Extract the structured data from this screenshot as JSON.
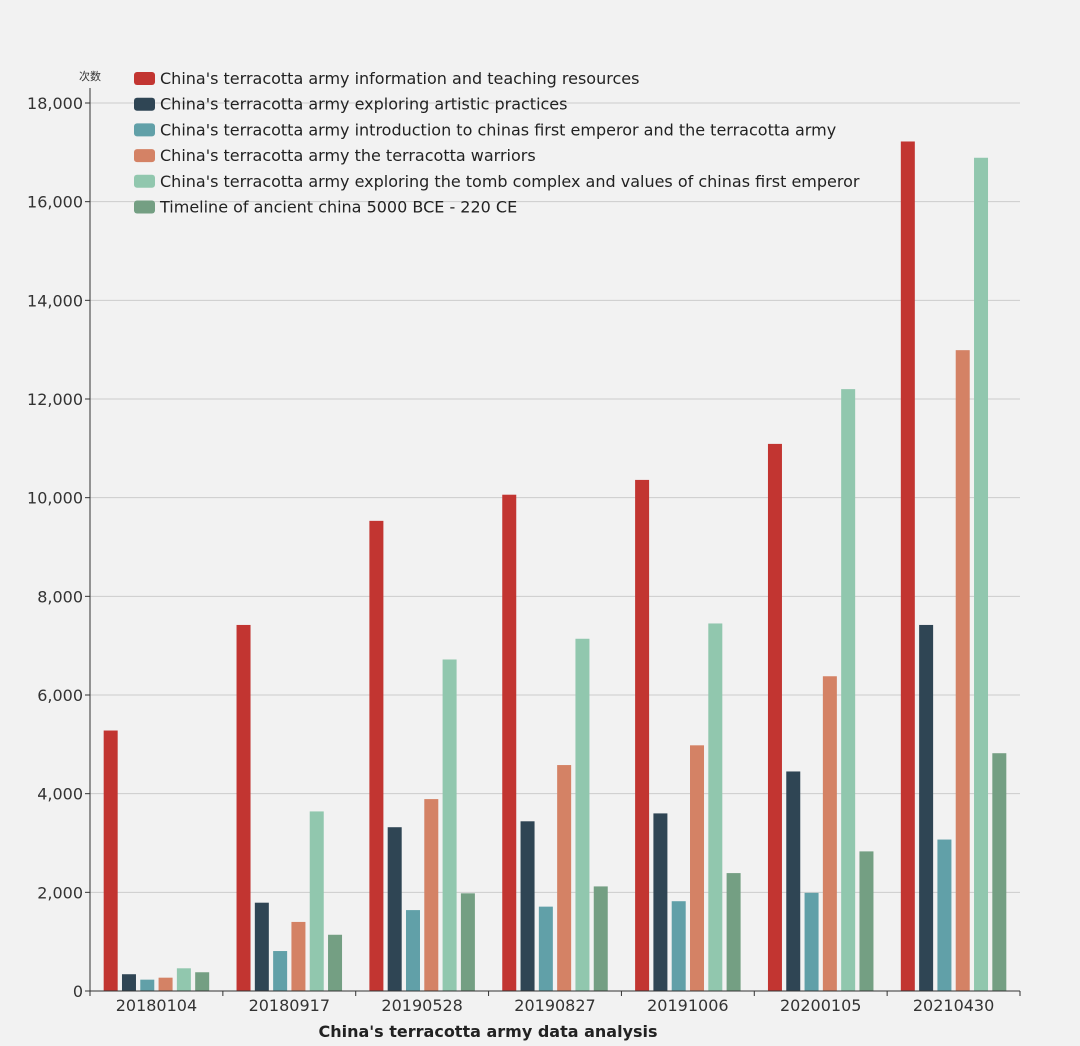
{
  "chart_data": {
    "type": "bar",
    "title": "",
    "xlabel": "China's terracotta army data analysis",
    "ylabel": "次数",
    "ylim": [
      0,
      18000
    ],
    "ytick_values": [
      0,
      2000,
      4000,
      6000,
      8000,
      10000,
      12000,
      14000,
      16000,
      18000
    ],
    "ytick_labels": [
      "0",
      "2,000",
      "4,000",
      "6,000",
      "8,000",
      "10,000",
      "12,000",
      "14,000",
      "16,000",
      "18,000"
    ],
    "grid": true,
    "legend_position": "top-left",
    "categories": [
      "20180104",
      "20180917",
      "20190528",
      "20190827",
      "20191006",
      "20200105",
      "20210430"
    ],
    "series": [
      {
        "name": "China's terracotta army information and teaching resources",
        "color": "#c23531",
        "values": [
          5280,
          7420,
          9530,
          10060,
          10360,
          11090,
          17220
        ]
      },
      {
        "name": "China's terracotta army exploring artistic practices",
        "color": "#2f4554",
        "values": [
          340,
          1790,
          3320,
          3440,
          3600,
          4450,
          7420
        ]
      },
      {
        "name": "China's terracotta army introduction to chinas first emperor and the terracotta army",
        "color": "#61a0a8",
        "values": [
          230,
          810,
          1640,
          1710,
          1820,
          1990,
          3070
        ]
      },
      {
        "name": "China's terracotta army the terracotta warriors",
        "color": "#d48265",
        "values": [
          270,
          1400,
          3890,
          4580,
          4980,
          6380,
          12990
        ]
      },
      {
        "name": "China's terracotta army exploring the tomb complex and values of chinas first emperor",
        "color": "#91c7ae",
        "values": [
          460,
          3640,
          6720,
          7140,
          7450,
          12200,
          16890
        ]
      },
      {
        "name": "Timeline of ancient china 5000 BCE - 220 CE",
        "color": "#749f83",
        "values": [
          380,
          1140,
          1980,
          2120,
          2390,
          2830,
          4820
        ]
      }
    ]
  }
}
